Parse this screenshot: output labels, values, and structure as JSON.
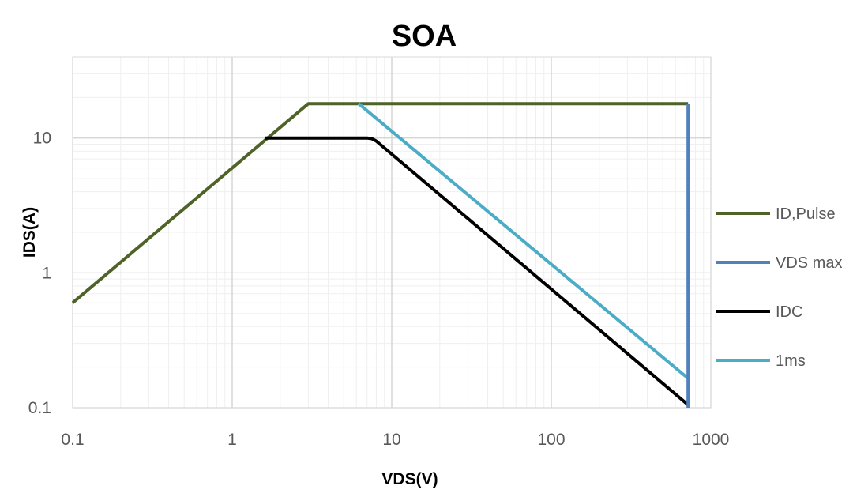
{
  "chart_data": {
    "type": "line",
    "title": "SOA",
    "xlabel": "VDS(V)",
    "ylabel": "IDS(A)",
    "xscale": "log",
    "yscale": "log",
    "xlim": [
      0.1,
      1000
    ],
    "ylim": [
      0.1,
      40
    ],
    "x_ticks": [
      0.1,
      1,
      10,
      100,
      1000
    ],
    "x_tick_labels": [
      "0.1",
      "1",
      "10",
      "100",
      "1000"
    ],
    "y_ticks": [
      0.1,
      1,
      10
    ],
    "y_tick_labels": [
      "0.1",
      "1",
      "10"
    ],
    "grid": true,
    "legend_position": "right",
    "series": [
      {
        "name": "ID,Pulse",
        "color": "#4f6228",
        "points": [
          [
            0.1,
            0.6
          ],
          [
            3.0,
            18
          ],
          [
            720,
            18
          ]
        ]
      },
      {
        "name": "VDS max",
        "color": "#4f81bd",
        "points": [
          [
            720,
            18
          ],
          [
            720,
            0.1
          ]
        ]
      },
      {
        "name": "IDC",
        "color": "#000000",
        "points": [
          [
            1.6,
            10
          ],
          [
            7.0,
            10
          ],
          [
            7.5,
            9.9
          ],
          [
            8.0,
            9.5
          ],
          [
            720,
            0.105
          ]
        ]
      },
      {
        "name": "1ms",
        "color": "#4bacc6",
        "points": [
          [
            6.2,
            18
          ],
          [
            720,
            0.165
          ]
        ]
      }
    ]
  }
}
